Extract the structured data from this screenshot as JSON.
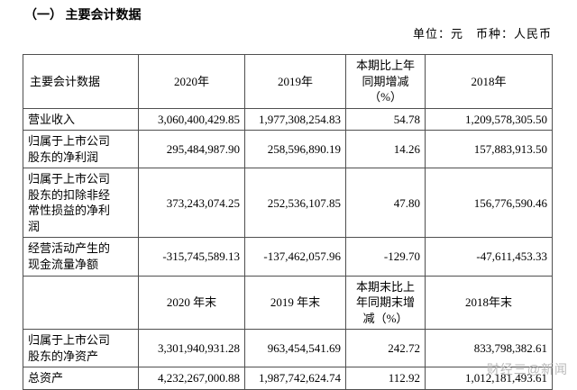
{
  "title": "（一） 主要会计数据",
  "unit_line": "单位：元　币种：人民币",
  "table": {
    "header_period": [
      "主要会计数据",
      "2020年",
      "2019年",
      "本期比上年\n同期增减\n（%）",
      "2018年"
    ],
    "rows_period": [
      {
        "label": "营业收入",
        "values": [
          "3,060,400,429.85",
          "1,977,308,254.83",
          "54.78",
          "1,209,578,305.50"
        ]
      },
      {
        "label": "归属于上市公司\n股东的净利润",
        "values": [
          "295,484,987.90",
          "258,596,890.19",
          "14.26",
          "157,883,913.50"
        ]
      },
      {
        "label": "归属于上市公司\n股东的扣除非经\n常性损益的净利\n润",
        "values": [
          "373,243,074.25",
          "252,536,107.85",
          "47.80",
          "156,776,590.46"
        ]
      },
      {
        "label": "经营活动产生的\n现金流量净额",
        "values": [
          "-315,745,589.13",
          "-137,462,057.96",
          "-129.70",
          "-47,611,453.33"
        ]
      }
    ],
    "header_end": [
      "",
      "2020 年末",
      "2019 年末",
      "本期末比上\n年同期末增\n减（%）",
      "2018年末"
    ],
    "rows_end": [
      {
        "label": "归属于上市公司\n股东的净资产",
        "values": [
          "3,301,940,931.28",
          "963,454,541.69",
          "242.72",
          "833,798,382.61"
        ]
      },
      {
        "label": "总资产",
        "values": [
          "4,232,267,000.88",
          "1,987,742,624.74",
          "112.92",
          "1,012,181,493.61"
        ]
      }
    ]
  },
  "watermark": "财经三@新闻"
}
